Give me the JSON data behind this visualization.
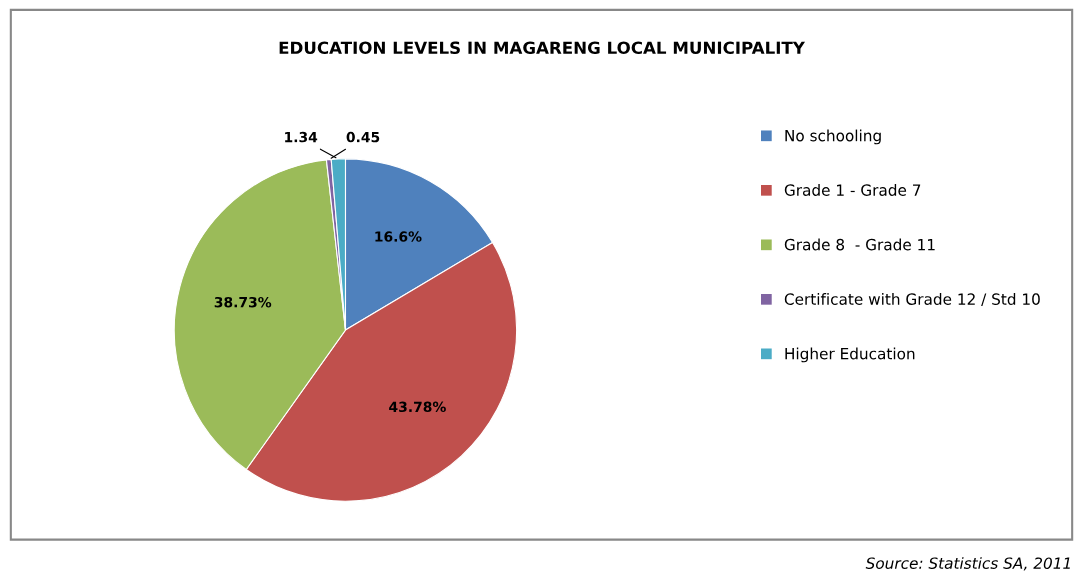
{
  "chart_data": {
    "type": "pie",
    "title": "EDUCATION LEVELS IN MAGARENG LOCAL MUNICIPALITY",
    "categories": [
      "No schooling",
      "Grade 1 - Grade 7",
      "Grade 8  - Grade 11",
      "Certificate with Grade 12 / Std 10",
      "Higher Education"
    ],
    "values": [
      16.6,
      43.78,
      38.73,
      0.45,
      1.34
    ],
    "value_labels": [
      "16.6%",
      "43.78%",
      "38.73%",
      "0.45",
      "1.34"
    ],
    "colors": [
      "#4f81bd",
      "#c0504d",
      "#9bbb59",
      "#8064a2",
      "#4bacc6"
    ],
    "legend": "right",
    "annotations": [
      "Source: Statistics SA, 2011"
    ]
  }
}
